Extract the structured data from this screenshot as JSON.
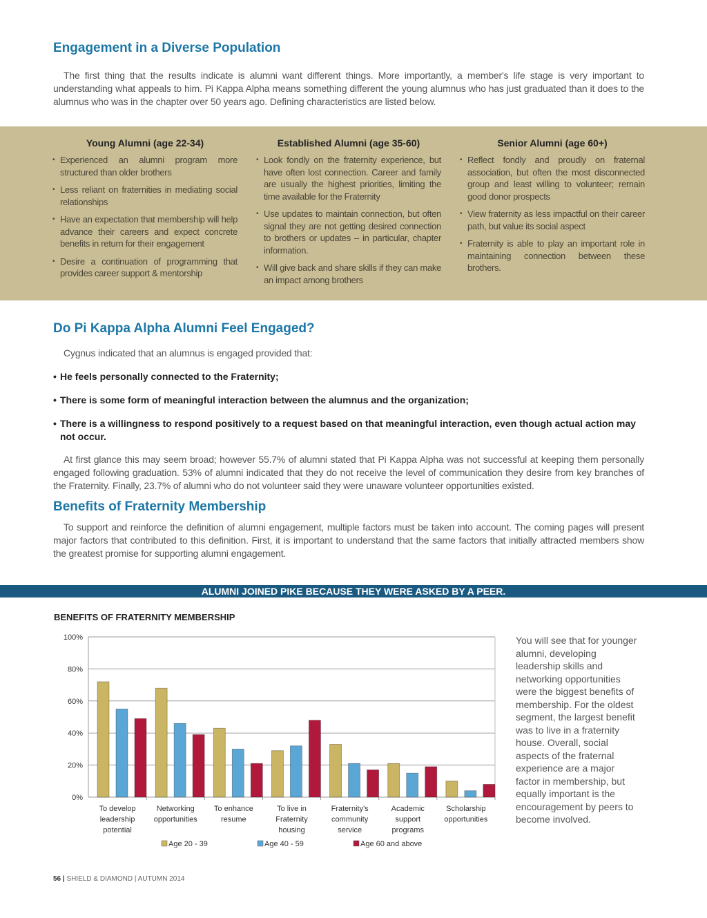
{
  "section1": {
    "title": "Engagement in a Diverse Population",
    "body": "The first thing that the results indicate is alumni want different things. More importantly, a member's life stage is very important to understanding what appeals to him. Pi Kappa Alpha means something different the young alumnus who has just graduated than it does to the alumnus who was in the chapter over 50 years ago. Defining characteristics are listed below."
  },
  "columns": [
    {
      "title": "Young Alumni (age 22-34)",
      "items": [
        "Experienced an alumni program more structured than older brothers",
        "Less reliant on fraternities in mediating social relationships",
        "Have an expectation that membership will help advance their careers and expect concrete benefits in return for their engagement",
        "Desire a continuation of programming that provides career support & mentorship"
      ]
    },
    {
      "title": "Established Alumni (age 35-60)",
      "items": [
        "Look fondly on the fraternity experience, but have often lost connection. Career and family are usually the highest priorities, limiting the time available for the Fraternity",
        "Use updates to maintain connection, but often signal they are not getting desired connection to brothers or updates – in particular, chapter information.",
        "Will give back and share skills if they can make an impact among brothers"
      ]
    },
    {
      "title": "Senior Alumni (age 60+)",
      "items": [
        "Reflect fondly and proudly on fraternal association, but often the most disconnected group and least willing to volunteer; remain good donor prospects",
        "View fraternity as less impactful on their career path, but value its social aspect",
        "Fraternity is able to play an important role in maintaining connection between these brothers."
      ]
    }
  ],
  "section2": {
    "title": "Do Pi Kappa Alpha Alumni Feel Engaged?",
    "intro": "Cygnus indicated that an alumnus is engaged provided that:",
    "bullets": [
      "He feels personally connected to the Fraternity;",
      "There is some form of meaningful interaction between the alumnus and the organization;",
      "There is a willingness to respond positively to a request based on that meaningful interaction, even though actual action may not occur."
    ],
    "body": "At first glance this may seem broad; however 55.7% of alumni stated that Pi Kappa Alpha was not successful at keeping them personally engaged following graduation. 53% of alumni indicated that they do not receive the level of communication they desire from key branches of the Fraternity. Finally, 23.7% of alumni who do not volunteer said they were unaware volunteer opportunities existed."
  },
  "section3": {
    "title": "Benefits of Fraternity Membership",
    "body": "To support and reinforce the definition of alumni engagement, multiple factors must be taken into account. The coming pages will present major factors that contributed to this definition. First, it is important to understand that the same factors that initially attracted members show the greatest promise for supporting alumni engagement."
  },
  "banner": "ALUMNI JOINED PIKE BECAUSE THEY WERE ASKED BY A PEER.",
  "sidebar_text": "You will see that for younger alumni, developing leadership skills and networking opportunities were the biggest benefits of membership. For the oldest segment, the largest benefit was to live in a fraternity house. Overall, social aspects of the fraternal experience are a major factor in membership, but equally important is the encouragement by peers to become involved.",
  "footer": {
    "page": "56",
    "sep": "|",
    "text": "SHIELD & DIAMOND | AUTUMN 2014"
  },
  "chart_data": {
    "type": "bar",
    "title": "BENEFITS OF FRATERNITY MEMBERSHIP",
    "categories": [
      [
        "To develop",
        "leadership",
        "potential"
      ],
      [
        "Networking",
        "opportunities"
      ],
      [
        "To enhance",
        "resume"
      ],
      [
        "To live in",
        "Fraternity",
        "housing"
      ],
      [
        "Fraternity's",
        "community",
        "service"
      ],
      [
        "Academic",
        "support",
        "programs"
      ],
      [
        "Scholarship",
        "opportunities"
      ]
    ],
    "series": [
      {
        "name": "Age 20 - 39",
        "color": "#c9b563",
        "values": [
          72,
          68,
          43,
          29,
          33,
          21,
          10
        ]
      },
      {
        "name": "Age 40 - 59",
        "color": "#5aa7d6",
        "values": [
          55,
          46,
          30,
          32,
          21,
          15,
          4
        ]
      },
      {
        "name": "Age 60 and above",
        "color": "#b0183c",
        "values": [
          49,
          39,
          21,
          48,
          17,
          19,
          8
        ]
      }
    ],
    "yticks": [
      "0%",
      "20%",
      "40%",
      "60%",
      "80%",
      "100%"
    ],
    "ylim": [
      0,
      100
    ],
    "grid": true,
    "legend": "bottom"
  }
}
